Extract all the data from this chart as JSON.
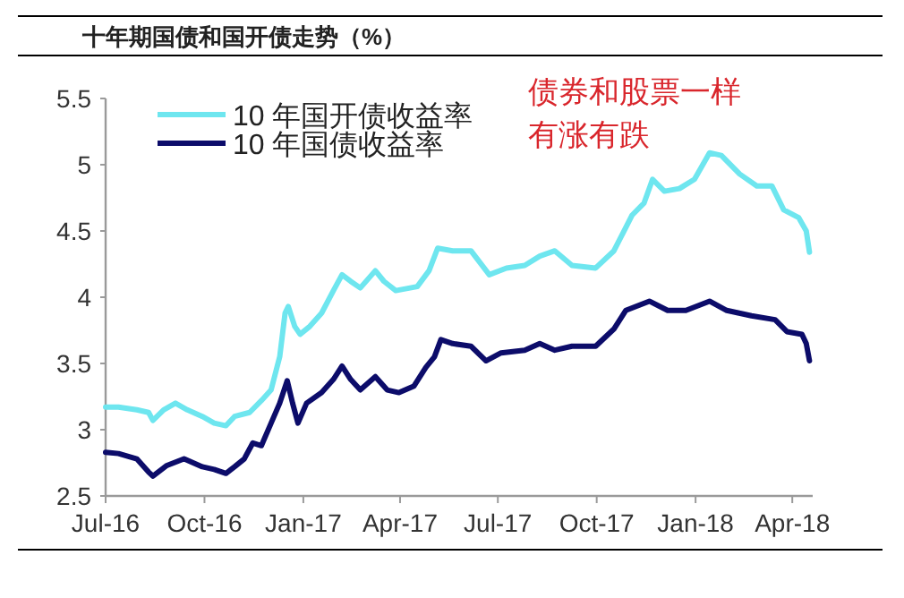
{
  "chart_data": {
    "type": "line",
    "title": "十年期国债和国开债走势（%）",
    "annotations": [
      "债券和股票一样有涨有跌"
    ],
    "legend": "top left",
    "line_style": "solid",
    "xlim": [
      "2016-07-01",
      "2018-04-20"
    ],
    "ylim": [
      2.5,
      5.5
    ],
    "yticks": [
      2.5,
      3,
      3.5,
      4,
      4.5,
      5,
      5.5
    ],
    "xticks": [
      {
        "value": "2016-07-01",
        "label": "Jul-16"
      },
      {
        "value": "2016-10-01",
        "label": "Oct-16"
      },
      {
        "value": "2017-01-01",
        "label": "Jan-17"
      },
      {
        "value": "2017-04-01",
        "label": "Apr-17"
      },
      {
        "value": "2017-07-01",
        "label": "Jul-17"
      },
      {
        "value": "2017-10-01",
        "label": "Oct-17"
      },
      {
        "value": "2018-01-01",
        "label": "Jan-18"
      },
      {
        "value": "2018-04-01",
        "label": "Apr-18"
      }
    ],
    "series": [
      {
        "name": "10 年国开债收益率",
        "color": "#6ee6ef",
        "x": [
          "2016-07-01",
          "2016-07-13",
          "2016-07-30",
          "2016-08-10",
          "2016-08-14",
          "2016-08-24",
          "2016-09-04",
          "2016-09-15",
          "2016-09-29",
          "2016-10-10",
          "2016-10-21",
          "2016-10-29",
          "2016-11-12",
          "2016-11-23",
          "2016-12-02",
          "2016-12-10",
          "2016-12-15",
          "2016-12-18",
          "2016-12-24",
          "2016-12-29",
          "2017-01-07",
          "2017-01-18",
          "2017-01-29",
          "2017-02-06",
          "2017-02-14",
          "2017-02-23",
          "2017-03-09",
          "2017-03-17",
          "2017-03-28",
          "2017-04-17",
          "2017-04-28",
          "2017-05-06",
          "2017-05-20",
          "2017-06-06",
          "2017-06-23",
          "2017-07-09",
          "2017-07-26",
          "2017-08-09",
          "2017-08-23",
          "2017-09-08",
          "2017-09-30",
          "2017-10-17",
          "2017-11-03",
          "2017-11-14",
          "2017-11-22",
          "2017-12-03",
          "2017-12-17",
          "2017-12-31",
          "2018-01-14",
          "2018-01-25",
          "2018-02-11",
          "2018-02-27",
          "2018-03-13",
          "2018-03-24",
          "2018-04-07",
          "2018-04-14",
          "2018-04-17"
        ],
        "values": [
          3.17,
          3.17,
          3.15,
          3.13,
          3.07,
          3.15,
          3.2,
          3.15,
          3.1,
          3.05,
          3.03,
          3.1,
          3.13,
          3.22,
          3.3,
          3.55,
          3.88,
          3.93,
          3.78,
          3.72,
          3.78,
          3.88,
          4.05,
          4.17,
          4.12,
          4.07,
          4.2,
          4.12,
          4.05,
          4.08,
          4.2,
          4.37,
          4.35,
          4.35,
          4.17,
          4.22,
          4.24,
          4.31,
          4.35,
          4.24,
          4.22,
          4.35,
          4.62,
          4.71,
          4.89,
          4.8,
          4.82,
          4.89,
          5.09,
          5.07,
          4.93,
          4.84,
          4.84,
          4.66,
          4.6,
          4.5,
          4.34
        ]
      },
      {
        "name": "10 年国债收益率",
        "color": "#0c0c6a",
        "x": [
          "2016-07-01",
          "2016-07-13",
          "2016-07-30",
          "2016-08-10",
          "2016-08-14",
          "2016-08-27",
          "2016-09-12",
          "2016-09-29",
          "2016-10-10",
          "2016-10-21",
          "2016-10-29",
          "2016-11-07",
          "2016-11-15",
          "2016-11-23",
          "2016-12-02",
          "2016-12-10",
          "2016-12-17",
          "2016-12-22",
          "2016-12-27",
          "2017-01-04",
          "2017-01-18",
          "2017-01-29",
          "2017-02-06",
          "2017-02-14",
          "2017-02-23",
          "2017-03-09",
          "2017-03-20",
          "2017-03-31",
          "2017-04-14",
          "2017-04-25",
          "2017-05-03",
          "2017-05-09",
          "2017-05-20",
          "2017-06-06",
          "2017-06-20",
          "2017-07-04",
          "2017-07-26",
          "2017-08-09",
          "2017-08-23",
          "2017-09-08",
          "2017-09-30",
          "2017-10-17",
          "2017-10-28",
          "2017-11-19",
          "2017-12-06",
          "2017-12-23",
          "2018-01-14",
          "2018-01-30",
          "2018-02-22",
          "2018-03-16",
          "2018-03-27",
          "2018-04-10",
          "2018-04-14",
          "2018-04-17"
        ],
        "values": [
          2.83,
          2.82,
          2.78,
          2.68,
          2.65,
          2.73,
          2.78,
          2.72,
          2.7,
          2.67,
          2.72,
          2.78,
          2.9,
          2.88,
          3.05,
          3.2,
          3.37,
          3.2,
          3.05,
          3.2,
          3.28,
          3.38,
          3.48,
          3.38,
          3.3,
          3.4,
          3.3,
          3.28,
          3.33,
          3.47,
          3.55,
          3.68,
          3.65,
          3.63,
          3.52,
          3.58,
          3.6,
          3.65,
          3.6,
          3.63,
          3.63,
          3.76,
          3.9,
          3.97,
          3.9,
          3.9,
          3.97,
          3.9,
          3.86,
          3.83,
          3.74,
          3.72,
          3.65,
          3.52
        ]
      }
    ]
  }
}
